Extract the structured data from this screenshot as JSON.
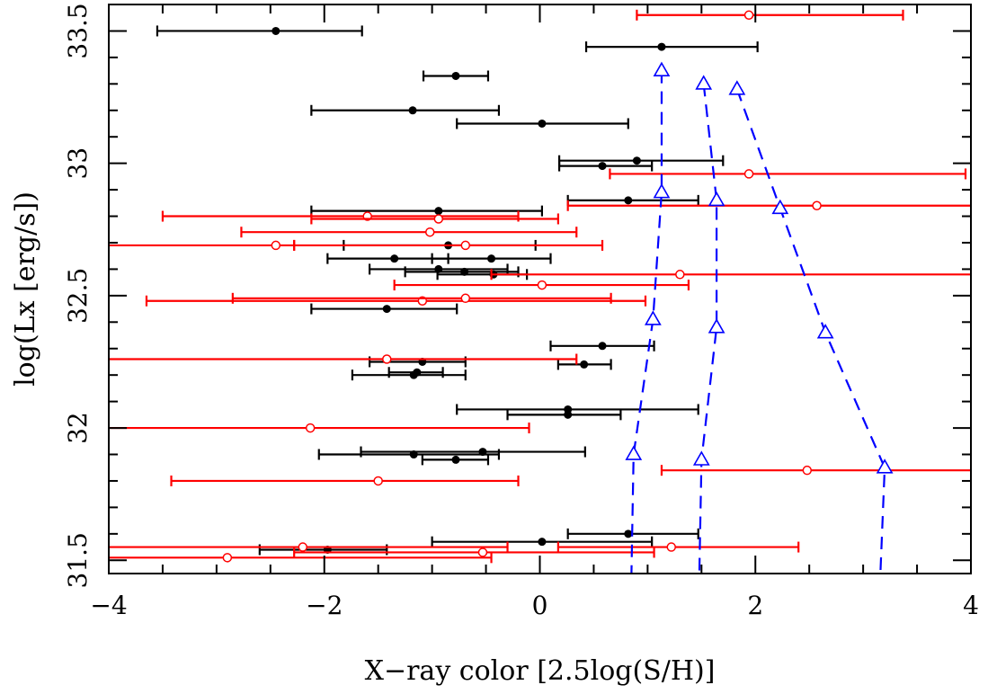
{
  "chart_data": {
    "type": "scatter",
    "xlabel": "X−ray color [2.5log(S/H)]",
    "ylabel": "log(Lx [erg/s])",
    "xlim": [
      -4,
      4
    ],
    "ylim": [
      31.45,
      33.6
    ],
    "x_ticks": [
      {
        "value": -4,
        "label": "−4"
      },
      {
        "value": -2,
        "label": "−2"
      },
      {
        "value": 0,
        "label": "0"
      },
      {
        "value": 2,
        "label": "2"
      },
      {
        "value": 4,
        "label": "4"
      }
    ],
    "y_ticks": [
      {
        "value": 31.5,
        "label": "31.5"
      },
      {
        "value": 32,
        "label": "32"
      },
      {
        "value": 32.5,
        "label": "32.5"
      },
      {
        "value": 33,
        "label": "33"
      },
      {
        "value": 33.5,
        "label": "33.5"
      }
    ],
    "colors": {
      "black_series": "#000000",
      "red_series": "#ff0000",
      "blue_tracks": "#0000ff"
    },
    "series": [
      {
        "marker": "filled-circle",
        "color": "#000000",
        "points": [
          {
            "x": -2.45,
            "y": 33.5,
            "xmin": -3.55,
            "xmax": -1.65
          },
          {
            "x": 1.13,
            "y": 33.44,
            "xmin": 0.43,
            "xmax": 2.02
          },
          {
            "x": -0.78,
            "y": 33.33,
            "xmin": -1.08,
            "xmax": -0.48
          },
          {
            "x": -1.18,
            "y": 33.2,
            "xmin": -2.12,
            "xmax": -0.38
          },
          {
            "x": 0.02,
            "y": 33.15,
            "xmin": -0.77,
            "xmax": 0.82
          },
          {
            "x": 0.9,
            "y": 33.01,
            "xmin": 0.18,
            "xmax": 1.7
          },
          {
            "x": 0.58,
            "y": 32.99,
            "xmin": 0.18,
            "xmax": 1.04
          },
          {
            "x": 0.82,
            "y": 32.86,
            "xmin": 0.26,
            "xmax": 1.47
          },
          {
            "x": -0.94,
            "y": 32.82,
            "xmin": -2.12,
            "xmax": 0.02
          },
          {
            "x": -0.85,
            "y": 32.69,
            "xmin": -1.82,
            "xmax": -0.04
          },
          {
            "x": -1.35,
            "y": 32.64,
            "xmin": -1.97,
            "xmax": -0.85
          },
          {
            "x": -0.45,
            "y": 32.64,
            "xmin": -1.0,
            "xmax": 0.1
          },
          {
            "x": -0.94,
            "y": 32.6,
            "xmin": -1.58,
            "xmax": -0.3
          },
          {
            "x": -0.7,
            "y": 32.59,
            "xmin": -1.25,
            "xmax": -0.2
          },
          {
            "x": -0.43,
            "y": 32.58,
            "xmin": -0.95,
            "xmax": -0.12
          },
          {
            "x": -1.42,
            "y": 32.45,
            "xmin": -2.12,
            "xmax": -0.77
          },
          {
            "x": 0.58,
            "y": 32.31,
            "xmin": 0.1,
            "xmax": 1.06
          },
          {
            "x": -1.09,
            "y": 32.25,
            "xmin": -1.58,
            "xmax": -0.69
          },
          {
            "x": 0.41,
            "y": 32.24,
            "xmin": 0.17,
            "xmax": 0.66
          },
          {
            "x": -1.14,
            "y": 32.21,
            "xmin": -1.4,
            "xmax": -0.9
          },
          {
            "x": -1.17,
            "y": 32.2,
            "xmin": -1.74,
            "xmax": -0.69
          },
          {
            "x": 0.26,
            "y": 32.07,
            "xmin": -0.77,
            "xmax": 1.47
          },
          {
            "x": 0.26,
            "y": 32.05,
            "xmin": -0.3,
            "xmax": 0.75
          },
          {
            "x": -0.53,
            "y": 31.91,
            "xmin": -1.66,
            "xmax": 0.42
          },
          {
            "x": -1.17,
            "y": 31.9,
            "xmin": -2.05,
            "xmax": -0.38
          },
          {
            "x": -0.78,
            "y": 31.88,
            "xmin": -1.09,
            "xmax": -0.48
          },
          {
            "x": 0.82,
            "y": 31.6,
            "xmin": 0.26,
            "xmax": 1.47
          },
          {
            "x": 0.02,
            "y": 31.57,
            "xmin": -1.0,
            "xmax": 1.04
          },
          {
            "x": -1.97,
            "y": 31.54,
            "xmin": -2.6,
            "xmax": -1.42
          }
        ]
      },
      {
        "marker": "open-circle",
        "color": "#ff0000",
        "points": [
          {
            "x": 1.94,
            "y": 33.56,
            "xmin": 0.9,
            "xmax": 3.37
          },
          {
            "x": 1.94,
            "y": 32.96,
            "xmin": 0.65,
            "xmax": 3.95
          },
          {
            "x": 2.57,
            "y": 32.84,
            "xmin": 0.26,
            "xmax": 4.0
          },
          {
            "x": -1.6,
            "y": 32.8,
            "xmin": -3.5,
            "xmax": -0.2
          },
          {
            "x": -0.94,
            "y": 32.79,
            "xmin": -2.12,
            "xmax": 0.17
          },
          {
            "x": -1.02,
            "y": 32.74,
            "xmin": -2.77,
            "xmax": 0.34
          },
          {
            "x": -2.45,
            "y": 32.69,
            "xmin": -4.0,
            "xmax": -2.28
          },
          {
            "x": -0.69,
            "y": 32.69,
            "xmin": -2.28,
            "xmax": 0.58
          },
          {
            "x": 1.3,
            "y": 32.58,
            "xmin": -0.45,
            "xmax": 4.0
          },
          {
            "x": 0.02,
            "y": 32.54,
            "xmin": -1.35,
            "xmax": 1.38
          },
          {
            "x": -1.09,
            "y": 32.48,
            "xmin": -3.65,
            "xmax": 0.98
          },
          {
            "x": -0.69,
            "y": 32.49,
            "xmin": -2.85,
            "xmax": 0.66
          },
          {
            "x": -1.42,
            "y": 32.26,
            "xmin": -4.0,
            "xmax": 0.34
          },
          {
            "x": -2.13,
            "y": 32.0,
            "xmin": -4.0,
            "xmax": -0.1
          },
          {
            "x": 2.48,
            "y": 31.84,
            "xmin": 1.13,
            "xmax": 4.0
          },
          {
            "x": -1.5,
            "y": 31.8,
            "xmin": -3.42,
            "xmax": -0.2
          },
          {
            "x": 1.22,
            "y": 31.55,
            "xmin": 0.17,
            "xmax": 2.4
          },
          {
            "x": -2.2,
            "y": 31.55,
            "xmin": -4.0,
            "xmax": -0.3
          },
          {
            "x": -0.53,
            "y": 31.53,
            "xmin": -2.28,
            "xmax": 1.06
          },
          {
            "x": -2.9,
            "y": 31.51,
            "xmin": -4.0,
            "xmax": -0.45
          }
        ]
      },
      {
        "marker": "open-triangle",
        "line": "dashed",
        "color": "#0000ff",
        "points": [
          {
            "x": 1.13,
            "y": 33.35
          },
          {
            "x": 1.13,
            "y": 32.89
          },
          {
            "x": 1.05,
            "y": 32.41
          },
          {
            "x": 0.87,
            "y": 31.9
          },
          {
            "x": 0.85,
            "y": 31.45
          }
        ]
      },
      {
        "marker": "open-triangle",
        "line": "dashed",
        "color": "#0000ff",
        "points": [
          {
            "x": 1.52,
            "y": 33.3
          },
          {
            "x": 1.64,
            "y": 32.86
          },
          {
            "x": 1.64,
            "y": 32.38
          },
          {
            "x": 1.5,
            "y": 31.88
          },
          {
            "x": 1.48,
            "y": 31.45
          }
        ]
      },
      {
        "marker": "open-triangle",
        "line": "dashed",
        "color": "#0000ff",
        "points": [
          {
            "x": 1.83,
            "y": 33.28
          },
          {
            "x": 2.23,
            "y": 32.83
          },
          {
            "x": 2.65,
            "y": 32.36
          },
          {
            "x": 3.2,
            "y": 31.85
          },
          {
            "x": 3.16,
            "y": 31.45
          }
        ]
      }
    ]
  }
}
